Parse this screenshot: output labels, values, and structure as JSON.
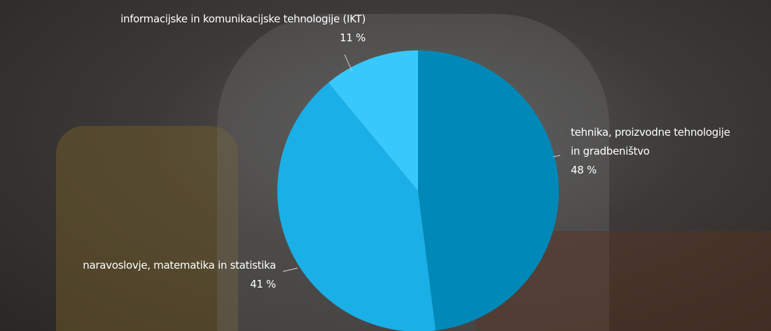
{
  "chart_data": {
    "type": "pie",
    "categories": [
      "tehnika, proizvodne tehnologije in gradbeništvo",
      "naravoslovje, matematika in statistika",
      "informacijske in komunikacijske tehnologije (IKT)"
    ],
    "values": [
      48,
      41,
      11
    ],
    "value_labels": [
      "48 %",
      "41 %",
      "11 %"
    ],
    "colors": [
      "#0088b8",
      "#1aafe6",
      "#38c8fb"
    ]
  }
}
